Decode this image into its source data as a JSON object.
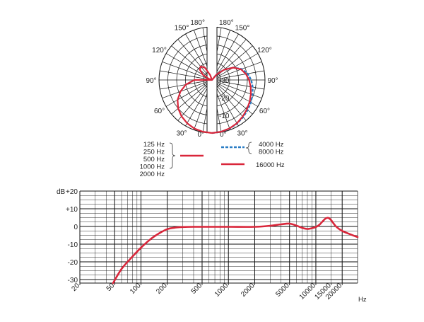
{
  "colors": {
    "low_series": "#d9263a",
    "mid_series": "#2a7dc4",
    "high_series": "#d9263a",
    "grid": "#111111"
  },
  "chart_data": [
    {
      "type": "polar",
      "angle_labels_left": [
        "180°",
        "150°",
        "120°",
        "90°",
        "60°",
        "30°",
        "0°"
      ],
      "angle_labels_right": [
        "180°",
        "150°",
        "120°",
        "90°",
        "60°",
        "30°",
        "0°"
      ],
      "radial_labels": [
        "-20",
        "-30",
        "-10"
      ],
      "radial_ticks_db": [
        -20,
        -30,
        -10
      ],
      "angles_deg": [
        0,
        10,
        20,
        30,
        40,
        50,
        60,
        70,
        80,
        90,
        100,
        110,
        120,
        130,
        140,
        150,
        160,
        170,
        180
      ],
      "rings_db": [
        0,
        -5,
        -10,
        -15,
        -20,
        -25,
        -30
      ],
      "series": [
        {
          "side": "left",
          "group": [
            "125 Hz",
            "250 Hz",
            "500 Hz",
            "1000 Hz",
            "2000 Hz"
          ],
          "color_key": "low_series",
          "dash": "solid",
          "values_db": [
            0,
            -0.3,
            -0.8,
            -1.8,
            -3.2,
            -5,
            -7.5,
            -11,
            -15,
            -20,
            -30,
            -28,
            -24,
            -21,
            -20,
            -22,
            -27,
            -30,
            -30
          ]
        },
        {
          "side": "right",
          "group": [
            "4000 Hz",
            "8000 Hz"
          ],
          "color_key": "mid_series",
          "dash": "dashed",
          "values_db": [
            0,
            -0.3,
            -0.8,
            -1.6,
            -2.6,
            -3.6,
            -4.6,
            -5.6,
            -6.6,
            -7.8,
            -9.5,
            -12,
            -16,
            -21,
            -26,
            -30,
            -30,
            -30,
            -30
          ]
        },
        {
          "side": "right",
          "group": [
            "16000 Hz"
          ],
          "color_key": "high_series",
          "dash": "solid",
          "values_db": [
            0,
            -0.3,
            -0.9,
            -1.8,
            -3,
            -4.2,
            -5.4,
            -6.6,
            -7.8,
            -9,
            -10.5,
            -12.5,
            -16,
            -21,
            -26,
            -30,
            -30,
            -30,
            -30
          ]
        }
      ]
    },
    {
      "type": "line",
      "ylabel": "dB",
      "ylim": [
        -32,
        20
      ],
      "y_ticks": [
        20,
        10,
        0,
        -10,
        -20,
        -30
      ],
      "y_tick_labels": [
        "+20",
        "+10",
        "0",
        "-10",
        "-20",
        "-30"
      ],
      "x_scale": "log",
      "xlim": [
        20,
        30000
      ],
      "x_ticks": [
        20,
        50,
        100,
        200,
        500,
        1000,
        2000,
        5000,
        10000,
        15000,
        20000
      ],
      "x_tick_labels": [
        "20",
        "50",
        "100",
        "200",
        "500",
        "1000",
        "2000",
        "5000",
        "10000",
        "15000",
        "20000"
      ],
      "xunit": "Hz",
      "grid": true,
      "series": [
        {
          "color_key": "low_series",
          "x": [
            48,
            60,
            80,
            100,
            130,
            160,
            200,
            250,
            300,
            400,
            500,
            1000,
            2000,
            3000,
            4000,
            5000,
            6000,
            7000,
            8000,
            9000,
            10000,
            11000,
            12000,
            13000,
            14000,
            15000,
            17000,
            20000,
            25000,
            30000
          ],
          "y": [
            -32,
            -24,
            -17,
            -12,
            -7,
            -4,
            -1.5,
            -0.6,
            -0.3,
            -0.2,
            -0.2,
            -0.2,
            -0.2,
            0.4,
            1.2,
            1.6,
            0.5,
            -0.8,
            -1.4,
            -1.0,
            -0.3,
            1.0,
            3.0,
            4.6,
            4.8,
            3.5,
            0.0,
            -2.5,
            -4.5,
            -6.0
          ]
        }
      ]
    }
  ],
  "legend": {
    "low_group": [
      "125 Hz",
      "250 Hz",
      "500 Hz",
      "1000 Hz",
      "2000 Hz"
    ],
    "mid_group": [
      "4000 Hz",
      "8000 Hz"
    ],
    "high_label": "16000 Hz"
  }
}
